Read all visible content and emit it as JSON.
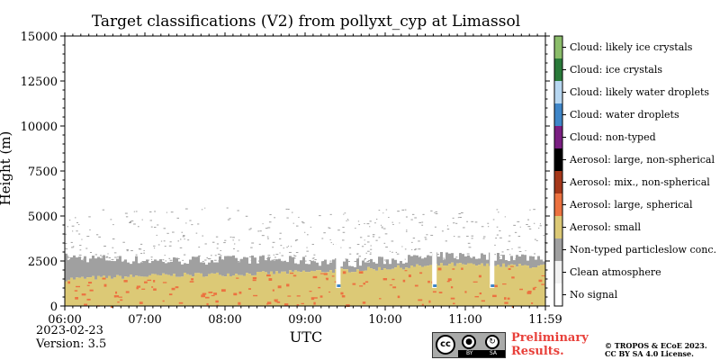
{
  "chart_data": {
    "type": "heatmap",
    "title": "Target classifications (V2) from pollyxt_cyp at Limassol",
    "xlabel": "UTC",
    "ylabel": "Height (m)",
    "x_ticks": [
      "06:00",
      "07:00",
      "08:00",
      "09:00",
      "10:00",
      "11:00",
      "11:59"
    ],
    "y_ticks": [
      "0",
      "2500",
      "5000",
      "7500",
      "10000",
      "12500",
      "15000"
    ],
    "xlim": [
      "06:00",
      "11:59"
    ],
    "ylim": [
      0,
      15000
    ],
    "grid": false,
    "legend_position": "right",
    "classes": [
      {
        "label": "No signal",
        "color": "#ffffff"
      },
      {
        "label": "Clean atmosphere",
        "color": "#f2f2f2"
      },
      {
        "label": "Non-typed particleslow conc.",
        "color": "#a0a0a0"
      },
      {
        "label": "Aerosol: small",
        "color": "#dcc976"
      },
      {
        "label": "Aerosol: large, spherical",
        "color": "#ec7240"
      },
      {
        "label": "Aerosol: mix., non-spherical",
        "color": "#a5381a"
      },
      {
        "label": "Aerosol: large, non-spherical",
        "color": "#000000"
      },
      {
        "label": "Cloud: non-typed",
        "color": "#7a1e82"
      },
      {
        "label": "Cloud: water droplets",
        "color": "#3f86c8"
      },
      {
        "label": "Cloud: likely water droplets",
        "color": "#b7d7f1"
      },
      {
        "label": "Cloud: ice crystals",
        "color": "#2a7a3a"
      },
      {
        "label": "Cloud: likely ice crystals",
        "color": "#8bbd6a"
      }
    ],
    "layers": {
      "aerosol_small_top_m": [
        1500,
        1700,
        1800,
        2000,
        2300,
        2200
      ],
      "non_typed_top_m": [
        2700,
        2500,
        2600,
        2400,
        2800,
        2700
      ],
      "speckle_top_m": 5500
    }
  },
  "footer": {
    "date": "2023-02-23",
    "version": "Version: 3.5",
    "preliminary_line1": "Preliminary",
    "preliminary_line2": "Results.",
    "copyright_line1": "© TROPOS & ECoE 2023.",
    "copyright_line2": "CC BY SA 4.0 License.",
    "cc_text": "cc",
    "cc_by": "BY",
    "cc_sa": "SA"
  }
}
